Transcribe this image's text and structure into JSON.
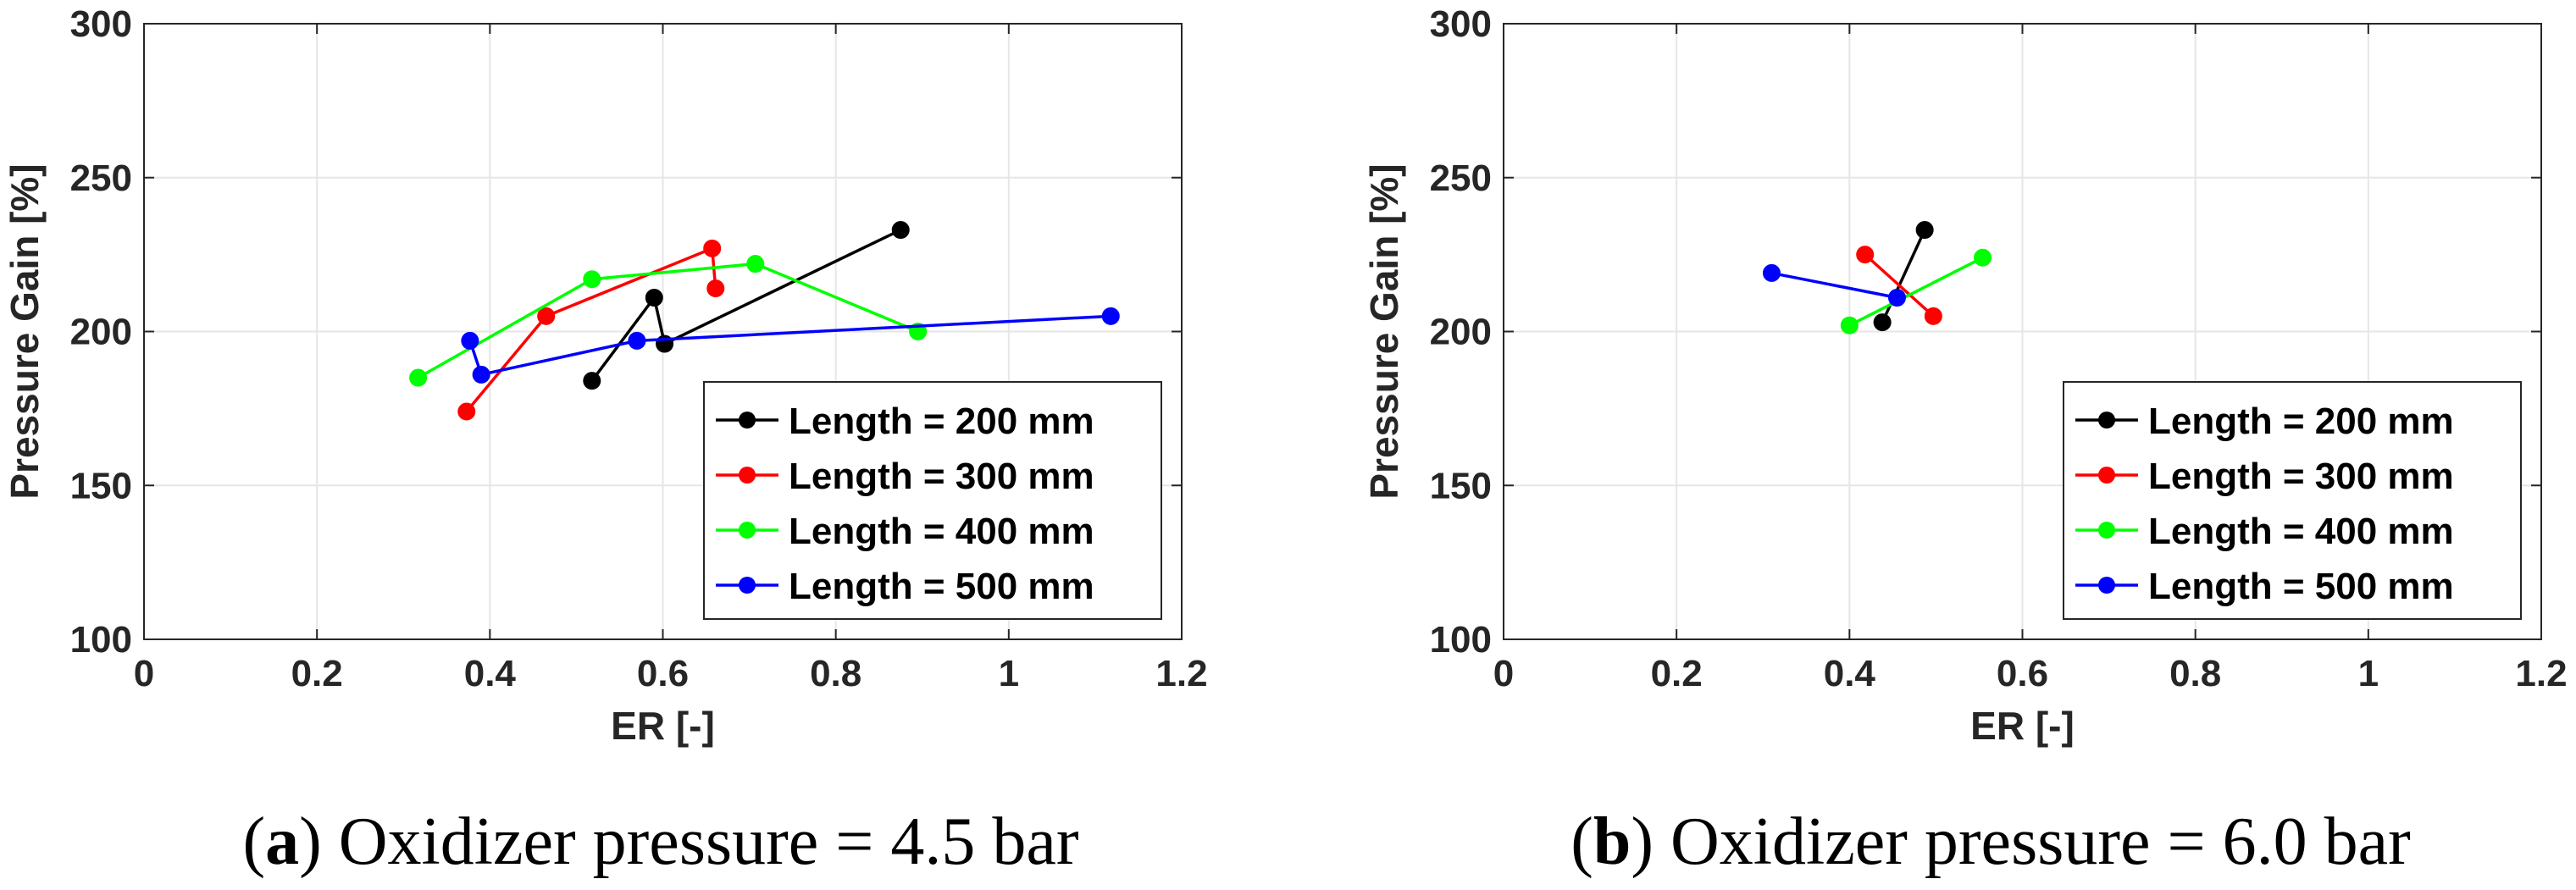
{
  "chart_data": [
    {
      "type": "line",
      "panel": "a",
      "caption_label": "a",
      "caption_text": "Oxidizer pressure = 4.5 bar",
      "xlabel": "ER [-]",
      "ylabel": "Pressure Gain [%]",
      "xlim": [
        0,
        1.2
      ],
      "ylim": [
        100,
        300
      ],
      "xticks": [
        0,
        0.2,
        0.4,
        0.6,
        0.8,
        1,
        1.2
      ],
      "xtick_labels": [
        "0",
        "0.2",
        "0.4",
        "0.6",
        "0.8",
        "1",
        "1.2"
      ],
      "yticks": [
        100,
        150,
        200,
        250,
        300
      ],
      "ytick_labels": [
        "100",
        "150",
        "200",
        "250",
        "300"
      ],
      "grid": true,
      "legend_position": "bottom-right",
      "series": [
        {
          "name": "Length = 200 mm",
          "color": "#000000",
          "x": [
            0.518,
            0.59,
            0.602,
            0.875
          ],
          "y": [
            184,
            211,
            196,
            233
          ]
        },
        {
          "name": "Length = 300 mm",
          "color": "#ff0000",
          "x": [
            0.373,
            0.465,
            0.657,
            0.661
          ],
          "y": [
            174,
            205,
            227,
            214
          ]
        },
        {
          "name": "Length = 400 mm",
          "color": "#00ff00",
          "x": [
            0.317,
            0.518,
            0.707,
            0.895
          ],
          "y": [
            185,
            217,
            222,
            200
          ]
        },
        {
          "name": "Length = 500 mm",
          "color": "#0000ff",
          "x": [
            0.377,
            0.39,
            0.57,
            1.118
          ],
          "y": [
            197,
            186,
            197,
            205
          ]
        }
      ]
    },
    {
      "type": "line",
      "panel": "b",
      "caption_label": "b",
      "caption_text": "Oxidizer pressure = 6.0 bar",
      "xlabel": "ER [-]",
      "ylabel": "Pressure Gain [%]",
      "xlim": [
        0,
        1.2
      ],
      "ylim": [
        100,
        300
      ],
      "xticks": [
        0,
        0.2,
        0.4,
        0.6,
        0.8,
        1,
        1.2
      ],
      "xtick_labels": [
        "0",
        "0.2",
        "0.4",
        "0.6",
        "0.8",
        "1",
        "1.2"
      ],
      "yticks": [
        100,
        150,
        200,
        250,
        300
      ],
      "ytick_labels": [
        "100",
        "150",
        "200",
        "250",
        "300"
      ],
      "grid": true,
      "legend_position": "bottom-right",
      "series": [
        {
          "name": "Length = 200 mm",
          "color": "#000000",
          "x": [
            0.438,
            0.487
          ],
          "y": [
            203,
            233
          ]
        },
        {
          "name": "Length = 300 mm",
          "color": "#ff0000",
          "x": [
            0.418,
            0.497
          ],
          "y": [
            225,
            205
          ]
        },
        {
          "name": "Length = 400 mm",
          "color": "#00ff00",
          "x": [
            0.4,
            0.554
          ],
          "y": [
            202,
            224
          ]
        },
        {
          "name": "Length = 500 mm",
          "color": "#0000ff",
          "x": [
            0.31,
            0.455
          ],
          "y": [
            219,
            211
          ]
        }
      ]
    }
  ]
}
